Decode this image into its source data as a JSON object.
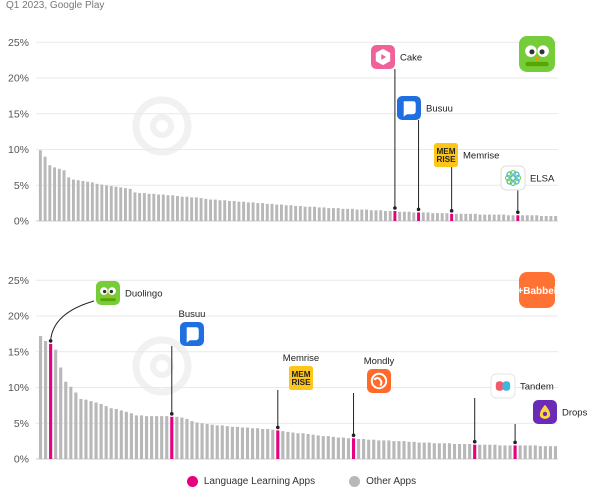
{
  "subtitle": "Q1 2023, Google Play",
  "colors": {
    "language": "#e6007e",
    "other": "#b8b8b8"
  },
  "legend": {
    "language": "Language Learning Apps",
    "other": "Other Apps"
  },
  "chart_data": [
    {
      "type": "bar",
      "ylim": [
        0,
        27
      ],
      "yticks": [
        0,
        5,
        10,
        15,
        20,
        25
      ],
      "ytick_labels": [
        "0%",
        "5%",
        "10%",
        "15%",
        "20%",
        "25%"
      ],
      "grid": true,
      "values": [
        9.9,
        9.0,
        7.8,
        7.5,
        7.3,
        7.1,
        6.1,
        5.8,
        5.7,
        5.6,
        5.5,
        5.4,
        5.2,
        5.1,
        5.0,
        4.9,
        4.8,
        4.7,
        4.6,
        4.5,
        4.0,
        3.9,
        3.9,
        3.8,
        3.8,
        3.7,
        3.7,
        3.6,
        3.6,
        3.5,
        3.4,
        3.4,
        3.3,
        3.3,
        3.2,
        3.1,
        3.0,
        3.0,
        2.9,
        2.9,
        2.8,
        2.8,
        2.7,
        2.7,
        2.6,
        2.6,
        2.5,
        2.5,
        2.4,
        2.4,
        2.3,
        2.3,
        2.2,
        2.2,
        2.1,
        2.1,
        2.0,
        2.0,
        2.0,
        1.9,
        1.9,
        1.8,
        1.8,
        1.8,
        1.7,
        1.7,
        1.7,
        1.6,
        1.6,
        1.6,
        1.5,
        1.5,
        1.5,
        1.4,
        1.4,
        1.4,
        1.3,
        1.3,
        1.3,
        1.2,
        1.2,
        1.2,
        1.2,
        1.1,
        1.1,
        1.1,
        1.1,
        1.0,
        1.0,
        1.0,
        1.0,
        1.0,
        1.0,
        0.9,
        0.9,
        0.9,
        0.9,
        0.9,
        0.9,
        0.8,
        0.8,
        0.8,
        0.8,
        0.8,
        0.8,
        0.8,
        0.7,
        0.7,
        0.7,
        0.7
      ],
      "highlighted": [
        {
          "index": 75,
          "label": "Cake",
          "icon": "cake-icon",
          "icon_color": "#f0609a"
        },
        {
          "index": 80,
          "label": "Busuu",
          "icon": "busuu-icon",
          "icon_color": "#1f6fe0"
        },
        {
          "index": 87,
          "label": "Memrise",
          "icon": "memrise-icon",
          "icon_color": "#ffc61a"
        },
        {
          "index": 101,
          "label": "ELSA",
          "icon": "elsa-icon",
          "icon_color": "#ffffff"
        }
      ],
      "corner_logo": {
        "name": "Duolingo",
        "icon": "duolingo-icon"
      }
    },
    {
      "type": "bar",
      "ylim": [
        0,
        27
      ],
      "yticks": [
        0,
        5,
        10,
        15,
        20,
        25
      ],
      "ytick_labels": [
        "0%",
        "5%",
        "10%",
        "15%",
        "20%",
        "25%"
      ],
      "grid": true,
      "values": [
        17.2,
        16.5,
        16.1,
        15.3,
        12.8,
        10.8,
        10.1,
        9.3,
        8.4,
        8.3,
        8.1,
        7.9,
        7.7,
        7.4,
        7.1,
        7.0,
        6.8,
        6.6,
        6.4,
        6.1,
        6.1,
        6.0,
        6.0,
        6.0,
        6.0,
        6.0,
        5.9,
        5.9,
        5.8,
        5.6,
        5.3,
        5.1,
        5.0,
        4.9,
        4.8,
        4.7,
        4.7,
        4.6,
        4.5,
        4.5,
        4.4,
        4.4,
        4.3,
        4.3,
        4.2,
        4.2,
        4.1,
        4.0,
        3.9,
        3.8,
        3.7,
        3.6,
        3.6,
        3.5,
        3.4,
        3.3,
        3.2,
        3.2,
        3.1,
        3.0,
        3.0,
        2.9,
        2.9,
        2.8,
        2.8,
        2.7,
        2.7,
        2.6,
        2.6,
        2.6,
        2.5,
        2.5,
        2.5,
        2.4,
        2.4,
        2.3,
        2.3,
        2.3,
        2.2,
        2.2,
        2.2,
        2.2,
        2.1,
        2.1,
        2.1,
        2.1,
        2.0,
        2.0,
        2.0,
        2.0,
        2.0,
        1.9,
        1.9,
        1.9,
        1.9,
        1.9,
        1.9,
        1.9,
        1.9,
        1.8,
        1.8,
        1.8,
        1.8
      ],
      "highlighted": [
        {
          "index": 2,
          "label": "Duolingo",
          "icon": "duolingo-icon",
          "icon_color": "#77cc3a"
        },
        {
          "index": 26,
          "label": "Busuu",
          "icon": "busuu-icon",
          "icon_color": "#1f6fe0"
        },
        {
          "index": 47,
          "label": "Memrise",
          "icon": "memrise-icon",
          "icon_color": "#ffc61a"
        },
        {
          "index": 62,
          "label": "Mondly",
          "icon": "mondly-icon",
          "icon_color": "#ff6a2b"
        },
        {
          "index": 86,
          "label": "Tandem",
          "icon": "tandem-icon",
          "icon_color": "#ffffff"
        },
        {
          "index": 94,
          "label": "Drops",
          "icon": "drops-icon",
          "icon_color": "#6a2bb6"
        }
      ],
      "corner_logo": {
        "name": "+Babbel",
        "icon": "babbel-icon"
      }
    }
  ]
}
